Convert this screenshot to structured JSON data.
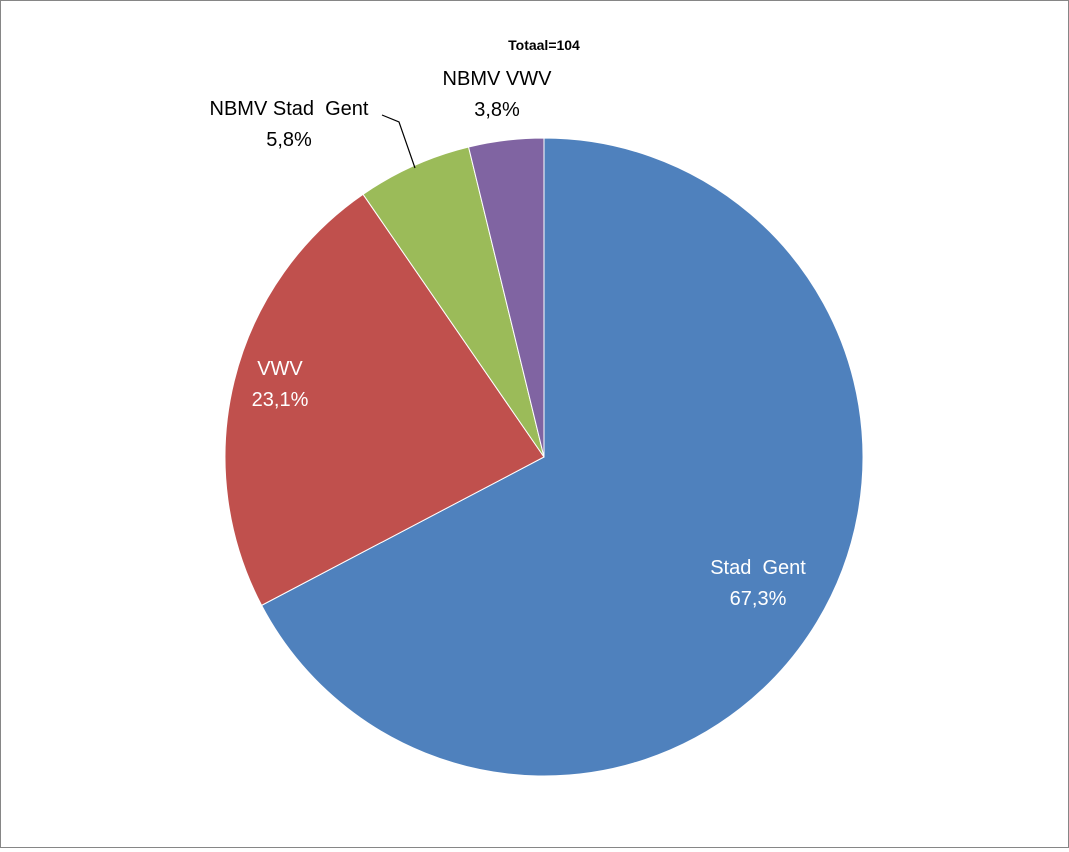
{
  "chart_data": {
    "type": "pie",
    "title": "Totaal=104",
    "start_angle_deg": 0,
    "direction": "clockwise",
    "slices": [
      {
        "label": "Stad  Gent",
        "value": 67.3,
        "value_label": "67,3%",
        "color": "#4F81BD",
        "label_color": "#FFFFFF",
        "label_inside": true
      },
      {
        "label": "VWV",
        "value": 23.1,
        "value_label": "23,1%",
        "color": "#C0504D",
        "label_color": "#FFFFFF",
        "label_inside": true
      },
      {
        "label": "NBMV Stad  Gent",
        "value": 5.8,
        "value_label": "5,8%",
        "color": "#9BBB59",
        "label_color": "#000000",
        "label_inside": false
      },
      {
        "label": "NBMV VWV",
        "value": 3.8,
        "value_label": "3,8%",
        "color": "#8064A2",
        "label_color": "#000000",
        "label_inside": false
      }
    ]
  }
}
